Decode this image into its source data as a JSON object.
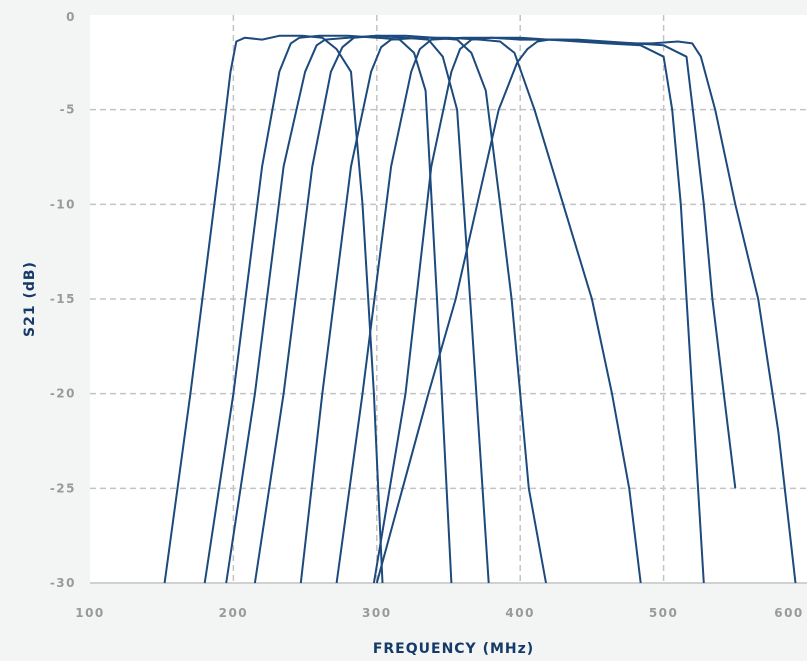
{
  "chart_data": {
    "type": "line",
    "title": "",
    "xlabel": "FREQUENCY (MHz)",
    "ylabel": "S21 (dB)",
    "xlim": [
      100,
      600
    ],
    "ylim": [
      -30,
      0
    ],
    "xticks": [
      100,
      200,
      300,
      400,
      500,
      600
    ],
    "xtick_labels": [
      "100",
      "200",
      "300",
      "400",
      "500",
      "600"
    ],
    "yticks": [
      0,
      -5,
      -10,
      -15,
      -20,
      -25,
      -30
    ],
    "ytick_labels": [
      "0",
      "-5",
      "-10",
      "-15",
      "-20",
      "-25",
      "-30"
    ],
    "grid": true,
    "legend": "none",
    "line_color": "#1c4a7d",
    "grid_color": "#c4c4c4",
    "axis_label_color": "#163a68",
    "tick_color": "#9a9a9a",
    "background_color": "#f3f4f4",
    "plot_background_color": "#ffffff",
    "series": [
      {
        "x": [
          152,
          170,
          190,
          198,
          202,
          208,
          220,
          232,
          248,
          262,
          272,
          282,
          290,
          298,
          304
        ],
        "y": [
          -30,
          -20,
          -8,
          -3,
          -1.4,
          -1.2,
          -1.3,
          -1.1,
          -1.1,
          -1.2,
          -1.8,
          -3,
          -10,
          -20,
          -30
        ]
      },
      {
        "x": [
          180,
          200,
          220,
          232,
          240,
          246,
          260,
          280,
          300,
          316,
          326,
          334,
          342,
          352
        ],
        "y": [
          -30,
          -20,
          -8,
          -3,
          -1.5,
          -1.2,
          -1.1,
          -1.1,
          -1.2,
          -1.3,
          -2,
          -4,
          -15,
          -30
        ]
      },
      {
        "x": [
          195,
          215,
          235,
          250,
          258,
          264,
          280,
          300,
          320,
          336,
          346,
          356,
          366,
          378
        ],
        "y": [
          -30,
          -20,
          -8,
          -3,
          -1.6,
          -1.3,
          -1.2,
          -1.1,
          -1.2,
          -1.3,
          -2.2,
          -5,
          -16,
          -30
        ]
      },
      {
        "x": [
          215,
          235,
          255,
          268,
          276,
          284,
          300,
          320,
          340,
          356,
          366,
          376,
          386,
          394,
          400,
          406,
          418
        ],
        "y": [
          -30,
          -20,
          -8,
          -3,
          -1.7,
          -1.2,
          -1.1,
          -1.1,
          -1.2,
          -1.3,
          -2,
          -4,
          -10,
          -15,
          -20,
          -25,
          -30
        ]
      },
      {
        "x": [
          247,
          262,
          282,
          296,
          303,
          310,
          330,
          350,
          372,
          386,
          396,
          410,
          430,
          450,
          464,
          476,
          484
        ],
        "y": [
          -30,
          -20,
          -8,
          -3,
          -1.7,
          -1.3,
          -1.2,
          -1.2,
          -1.3,
          -1.4,
          -2,
          -5,
          -10,
          -15,
          -20,
          -25,
          -30
        ]
      },
      {
        "x": [
          272,
          290,
          310,
          324,
          330,
          338,
          360,
          380,
          400,
          420,
          440,
          460,
          484,
          500,
          506,
          512,
          520,
          528
        ],
        "y": [
          -30,
          -20,
          -8,
          -3,
          -1.8,
          -1.3,
          -1.2,
          -1.2,
          -1.3,
          -1.3,
          -1.4,
          -1.5,
          -1.6,
          -2.2,
          -5,
          -10,
          -20,
          -30
        ]
      },
      {
        "x": [
          298,
          320,
          338,
          352,
          358,
          366,
          380,
          400,
          420,
          440,
          460,
          480,
          500,
          516,
          522,
          528,
          534,
          542,
          550
        ],
        "y": [
          -30,
          -20,
          -8,
          -3,
          -1.8,
          -1.3,
          -1.2,
          -1.2,
          -1.3,
          -1.3,
          -1.4,
          -1.5,
          -1.6,
          -2.2,
          -6,
          -10,
          -15,
          -20,
          -25
        ]
      },
      {
        "x": [
          300,
          318,
          336,
          355,
          370,
          385,
          398,
          405,
          412,
          420,
          430,
          450,
          470,
          492,
          510,
          520,
          526,
          536,
          550,
          566,
          580,
          592
        ],
        "y": [
          -30,
          -25,
          -20,
          -15,
          -10,
          -5,
          -2.5,
          -1.8,
          -1.4,
          -1.3,
          -1.3,
          -1.4,
          -1.5,
          -1.5,
          -1.4,
          -1.5,
          -2.2,
          -5,
          -10,
          -15,
          -22,
          -30
        ]
      }
    ]
  }
}
